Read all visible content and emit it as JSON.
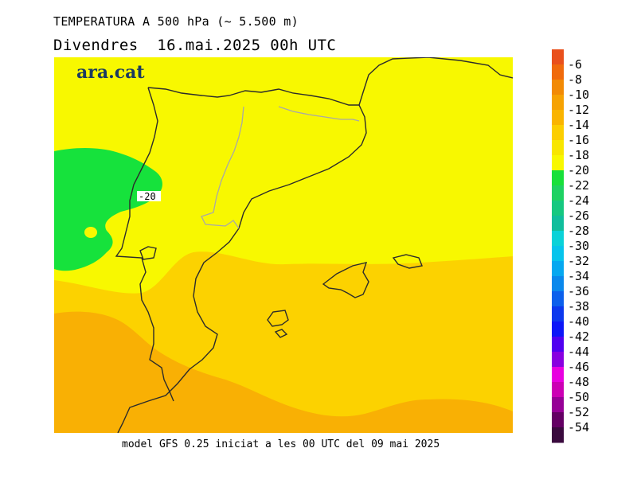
{
  "header": {
    "title": "TEMPERATURA A 500 hPa (~ 5.500 m)",
    "subtitle": "Divendres  16.mai.2025 00h UTC"
  },
  "map": {
    "logo": "ara.cat",
    "contour_label": "-20",
    "zones": [
      {
        "name": "cold-west",
        "value_band": "-22 to -20",
        "color": "#16e23c"
      },
      {
        "name": "north-center",
        "value_band": "-20 to -18",
        "color": "#f8f800"
      },
      {
        "name": "south-east",
        "value_band": "-18 to -16",
        "color": "#fcd200"
      },
      {
        "name": "south",
        "value_band": "-16 to -14",
        "color": "#f9b004"
      }
    ]
  },
  "legend": {
    "labels": [
      "-6",
      "-8",
      "-10",
      "-12",
      "-14",
      "-16",
      "-18",
      "-20",
      "-22",
      "-24",
      "-26",
      "-28",
      "-30",
      "-32",
      "-34",
      "-36",
      "-38",
      "-40",
      "-42",
      "-44",
      "-46",
      "-48",
      "-50",
      "-52",
      "-54"
    ],
    "colors": [
      "#e9501c",
      "#f06a0c",
      "#f28a05",
      "#f6a202",
      "#fab400",
      "#fcce00",
      "#f8e600",
      "#f8f800",
      "#18e03a",
      "#1ed262",
      "#16c880",
      "#10be9c",
      "#0ad2d8",
      "#06c4ec",
      "#06a8f0",
      "#0a88ec",
      "#0c60ec",
      "#0c38ee",
      "#0c16f8",
      "#5000f0",
      "#8800e0",
      "#e800e0",
      "#cc00b4",
      "#960096",
      "#640064",
      "#3a0a3e"
    ]
  },
  "footer": {
    "text": "model GFS 0.25 iniciat a les 00 UTC del 09 mai 2025"
  }
}
